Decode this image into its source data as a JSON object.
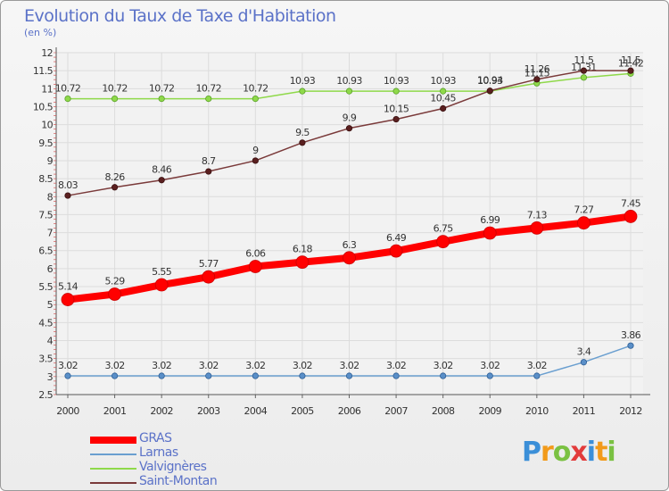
{
  "chart_data": {
    "type": "line",
    "title": "Evolution du Taux de Taxe d'Habitation",
    "subtitle": "(en %)",
    "x": [
      "2000",
      "2001",
      "2002",
      "2003",
      "2004",
      "2005",
      "2006",
      "2007",
      "2008",
      "2009",
      "2010",
      "2011",
      "2012"
    ],
    "ylim": [
      2.5,
      12
    ],
    "yticks": [
      "2.5",
      "3",
      "3.5",
      "4",
      "4.5",
      "5",
      "5.5",
      "6",
      "6.5",
      "7",
      "7.5",
      "8",
      "8.5",
      "9",
      "9.5",
      "10",
      "10.5",
      "11",
      "11.5",
      "12"
    ],
    "grid": true,
    "legend_position": "bottom-left",
    "series": [
      {
        "name": "GRAS",
        "color": "#ff0000",
        "values": [
          5.14,
          5.29,
          5.55,
          5.77,
          6.06,
          6.18,
          6.3,
          6.49,
          6.75,
          6.99,
          7.13,
          7.27,
          7.45
        ]
      },
      {
        "name": "Larnas",
        "color": "#6a9fd0",
        "values": [
          3.02,
          3.02,
          3.02,
          3.02,
          3.02,
          3.02,
          3.02,
          3.02,
          3.02,
          3.02,
          3.02,
          3.4,
          3.86
        ]
      },
      {
        "name": "Valvignères",
        "color": "#8fd94a",
        "values": [
          10.72,
          10.72,
          10.72,
          10.72,
          10.72,
          10.93,
          10.93,
          10.93,
          10.93,
          10.93,
          11.15,
          11.31,
          11.42
        ]
      },
      {
        "name": "Saint-Montan",
        "color": "#7a3a3a",
        "values": [
          8.03,
          8.26,
          8.46,
          8.7,
          9,
          9.5,
          9.9,
          10.15,
          10.45,
          10.94,
          11.26,
          11.5,
          11.5
        ]
      }
    ]
  },
  "logo": {
    "letters": [
      "P",
      "r",
      "o",
      "x",
      "i",
      "t",
      "i"
    ],
    "colors": [
      "#3b8fd8",
      "#f29a1a",
      "#7ac142",
      "#e23b3b",
      "#3b8fd8",
      "#f29a1a",
      "#7ac142"
    ]
  }
}
